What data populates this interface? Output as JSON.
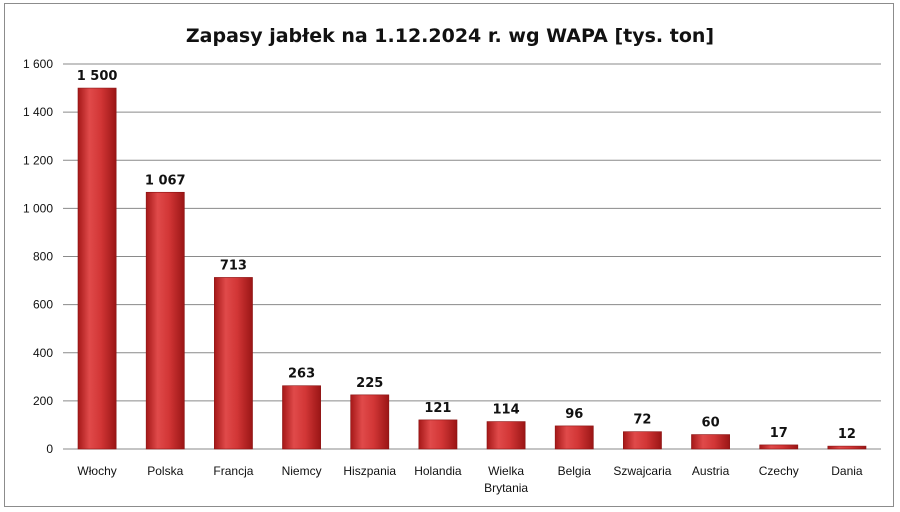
{
  "chart_data": {
    "type": "bar",
    "title": "Zapasy jabłek na 1.12.2024  r. wg WAPA [tys. ton]",
    "categories": [
      "Włochy",
      "Polska",
      "Francja",
      "Niemcy",
      "Hiszpania",
      "Holandia",
      "Wielka Brytania",
      "Belgia",
      "Szwajcaria",
      "Austria",
      "Czechy",
      "Dania"
    ],
    "values": [
      1500,
      1067,
      713,
      263,
      225,
      121,
      114,
      96,
      72,
      60,
      17,
      12
    ],
    "value_labels": [
      "1 500",
      "1 067",
      "713",
      "263",
      "225",
      "121",
      "114",
      "96",
      "72",
      "60",
      "17",
      "12"
    ],
    "y_ticks": [
      0,
      200,
      400,
      600,
      800,
      1000,
      1200,
      1400,
      1600
    ],
    "y_tick_labels": [
      "0",
      "200",
      "400",
      "600",
      "800",
      "1 000",
      "1 200",
      "1 400",
      "1 600"
    ],
    "ylim": [
      0,
      1600
    ],
    "grid": true,
    "legend": "none",
    "colors": {
      "bar_dark": "#a51818",
      "bar_mid": "#e04a4a",
      "bar_light": "#d23636",
      "grid": "#8a8a8a"
    }
  }
}
